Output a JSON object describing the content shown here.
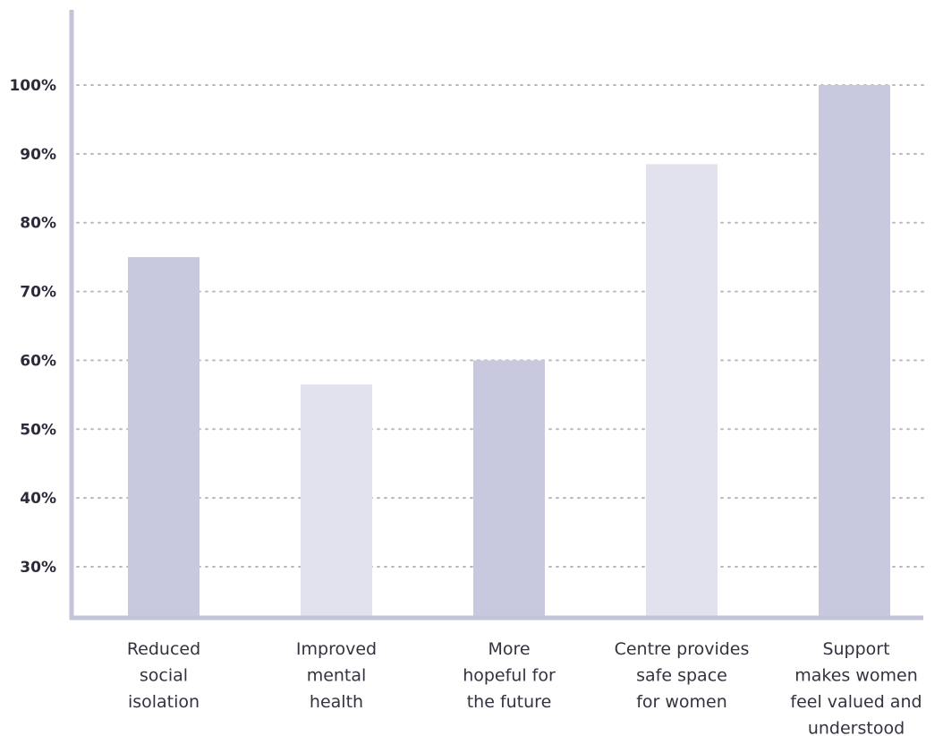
{
  "chart_data": {
    "type": "bar",
    "categories": [
      [
        "Reduced",
        "social",
        "isolation"
      ],
      [
        "Improved",
        "mental",
        "health"
      ],
      [
        "More",
        "hopeful for",
        "the future"
      ],
      [
        "Centre provides",
        "safe space",
        "for women"
      ],
      [
        "Support",
        "makes women",
        "feel valued and",
        "understood"
      ]
    ],
    "values": [
      75,
      56.5,
      60,
      88.5,
      100
    ],
    "bar_colors": [
      "#c8c8de",
      "#e2e2ef",
      "#c8c8de",
      "#e2e2ef",
      "#c8c8de"
    ],
    "ylim": [
      22.5,
      111
    ],
    "yticks": [
      30,
      40,
      50,
      60,
      70,
      80,
      90,
      100
    ],
    "ytick_labels": [
      "30%",
      "40%",
      "50%",
      "60%",
      "70%",
      "80%",
      "90%",
      "100%"
    ],
    "grid": true,
    "title": "",
    "xlabel": "",
    "ylabel": ""
  }
}
